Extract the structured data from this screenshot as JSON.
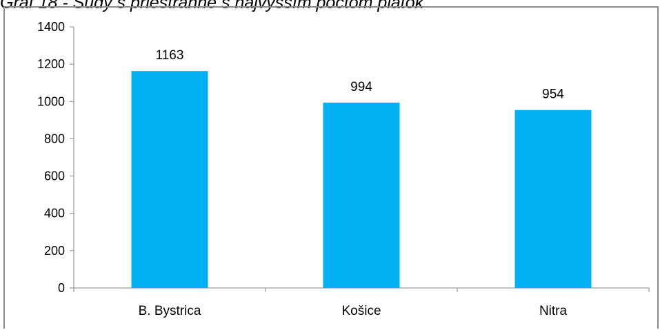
{
  "caption": "Graf 18 - Sudy s priestranne s najvyšším počtom piatok",
  "colors": {
    "bar": "#00b0f0",
    "axis": "#868686",
    "frame": "#8a8a8a"
  },
  "chart_data": {
    "type": "bar",
    "title": "",
    "xlabel": "",
    "ylabel": "",
    "categories": [
      "B. Bystrica",
      "Košice",
      "Nitra"
    ],
    "values": [
      1163,
      994,
      954
    ],
    "data_labels": [
      "1163",
      "994",
      "954"
    ],
    "ylim": [
      0,
      1400
    ],
    "yticks": [
      0,
      200,
      400,
      600,
      800,
      1000,
      1200,
      1400
    ],
    "ytick_labels": [
      "0",
      "200",
      "400",
      "600",
      "800",
      "1000",
      "1200",
      "1400"
    ],
    "grid": false,
    "legend": "none"
  }
}
